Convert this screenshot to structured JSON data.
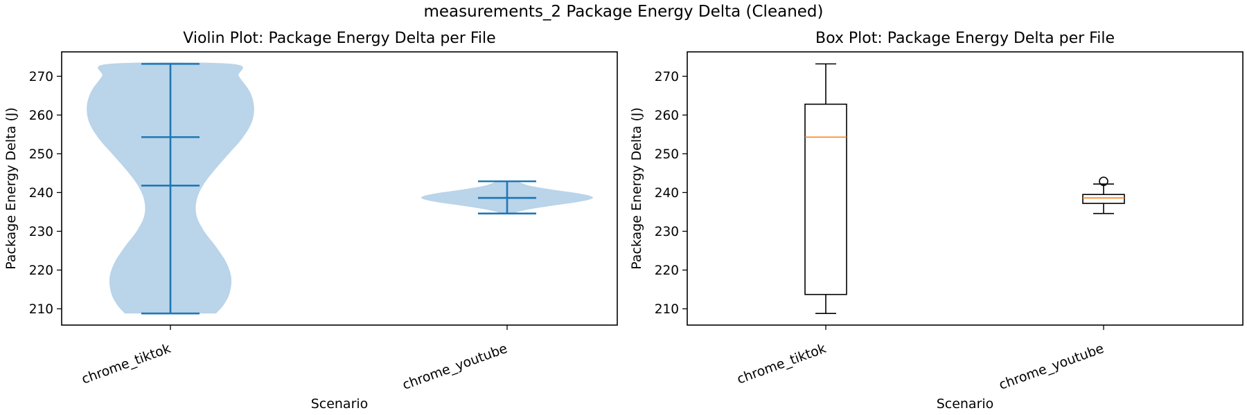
{
  "suptitle": "measurements_2 Package Energy Delta (Cleaned)",
  "colors": {
    "violin_fill": "#a7c8e3",
    "violin_line": "#1f77b4",
    "median_line": "#ff7f0e",
    "axis": "#000000"
  },
  "chart_data": [
    {
      "type": "violin",
      "title": "Violin Plot: Package Energy Delta per File",
      "xlabel": "Scenario",
      "ylabel": "Package Energy Delta (J)",
      "ylim": [
        205.8,
        276.3
      ],
      "yticks": [
        210,
        220,
        230,
        240,
        250,
        260,
        270
      ],
      "categories": [
        "chrome_tiktok",
        "chrome_youtube"
      ],
      "series": [
        {
          "name": "chrome_tiktok",
          "min": 208.8,
          "max": 273.2,
          "mean": 241.8,
          "median": 254.3,
          "density": [
            [
              208.8,
              0.54
            ],
            [
              211,
              0.63
            ],
            [
              214,
              0.7
            ],
            [
              218,
              0.72
            ],
            [
              222,
              0.66
            ],
            [
              226,
              0.54
            ],
            [
              230,
              0.4
            ],
            [
              234,
              0.31
            ],
            [
              238,
              0.31
            ],
            [
              242,
              0.39
            ],
            [
              246,
              0.53
            ],
            [
              250,
              0.69
            ],
            [
              254,
              0.85
            ],
            [
              258,
              0.96
            ],
            [
              262,
              0.99
            ],
            [
              266,
              0.94
            ],
            [
              270,
              0.81
            ],
            [
              273.2,
              0.73
            ]
          ]
        },
        {
          "name": "chrome_youtube",
          "min": 234.6,
          "max": 242.9,
          "mean": 238.6,
          "median": 238.6,
          "density": [
            [
              234.6,
              0.06
            ],
            [
              235.5,
              0.22
            ],
            [
              236.5,
              0.5
            ],
            [
              237.5,
              0.82
            ],
            [
              238.3,
              0.99
            ],
            [
              239,
              1.0
            ],
            [
              239.8,
              0.84
            ],
            [
              240.8,
              0.52
            ],
            [
              241.8,
              0.26
            ],
            [
              242.9,
              0.1
            ]
          ]
        }
      ]
    },
    {
      "type": "box",
      "title": "Box Plot: Package Energy Delta per File",
      "xlabel": "Scenario",
      "ylabel": "Package Energy Delta (J)",
      "ylim": [
        205.8,
        276.3
      ],
      "yticks": [
        210,
        220,
        230,
        240,
        250,
        260,
        270
      ],
      "categories": [
        "chrome_tiktok",
        "chrome_youtube"
      ],
      "series": [
        {
          "name": "chrome_tiktok",
          "whisker_low": 208.8,
          "q1": 213.7,
          "median": 254.3,
          "q3": 262.8,
          "whisker_high": 273.2,
          "outliers": []
        },
        {
          "name": "chrome_youtube",
          "whisker_low": 234.6,
          "q1": 237.2,
          "median": 238.6,
          "q3": 239.5,
          "whisker_high": 242.2,
          "outliers": [
            242.9
          ]
        }
      ]
    }
  ]
}
